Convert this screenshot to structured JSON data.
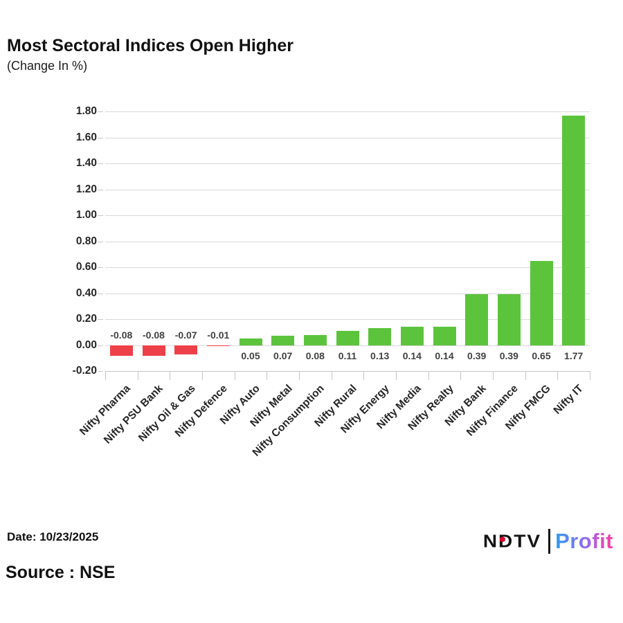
{
  "page": {
    "title": "Most Sectoral Indices Open Higher",
    "subtitle": "(Change In %)",
    "date_label": "Date: 10/23/2025",
    "source_label": "Source : NSE"
  },
  "logo": {
    "ndtv": "NDTV",
    "profit": "Profit"
  },
  "colors": {
    "positive_bar": "#5bc43c",
    "negative_bar": "#ee4048",
    "gridline": "#d9d9d9",
    "axis_line": "#c6c6c6",
    "value_label": "#414141",
    "axis_text": "#262626",
    "ndtv_dot": "#e4002b"
  },
  "chart_data": {
    "type": "bar",
    "title": "Most Sectoral Indices Open Higher",
    "subtitle": "(Change In %)",
    "xlabel": "",
    "ylabel": "",
    "categories": [
      "Nifty Pharma",
      "Nifty PSU Bank",
      "Nifty Oil & Gas",
      "Nifty Defence",
      "Nifty Auto",
      "Nifty Metal",
      "Nifty Consumption",
      "Nifty Rural",
      "Nifty Energy",
      "Nifty Media",
      "Nifty Realty",
      "Nifty Bank",
      "Nifty Finance",
      "Nifty FMCG",
      "Nifty IT"
    ],
    "values": [
      -0.08,
      -0.08,
      -0.07,
      -0.01,
      0.05,
      0.07,
      0.08,
      0.11,
      0.13,
      0.14,
      0.14,
      0.39,
      0.39,
      0.65,
      1.77
    ],
    "value_labels": [
      "-0.08",
      "-0.08",
      "-0.07",
      "-0.01",
      "0.05",
      "0.07",
      "0.08",
      "0.11",
      "0.13",
      "0.14",
      "0.14",
      "0.39",
      "0.39",
      "0.65",
      "1.77"
    ],
    "ylim": [
      -0.2,
      1.8
    ],
    "ytick_labels": [
      "1.80",
      "1.60",
      "1.40",
      "1.20",
      "1.00",
      "0.80",
      "0.60",
      "0.40",
      "0.20",
      "0.00",
      "-0.20"
    ],
    "grid": true,
    "legend": false
  }
}
